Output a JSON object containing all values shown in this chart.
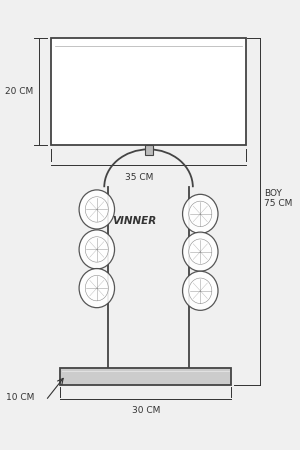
{
  "bg_color": "#f0f0f0",
  "line_color": "#444444",
  "text_color": "#333333",
  "brand": "VINNER",
  "labels": {
    "shade_h": "20 CM",
    "shade_w": "35 CM",
    "base_h": "10 CM",
    "base_w": "30 CM",
    "total_h": "BOY\n75 CM"
  }
}
